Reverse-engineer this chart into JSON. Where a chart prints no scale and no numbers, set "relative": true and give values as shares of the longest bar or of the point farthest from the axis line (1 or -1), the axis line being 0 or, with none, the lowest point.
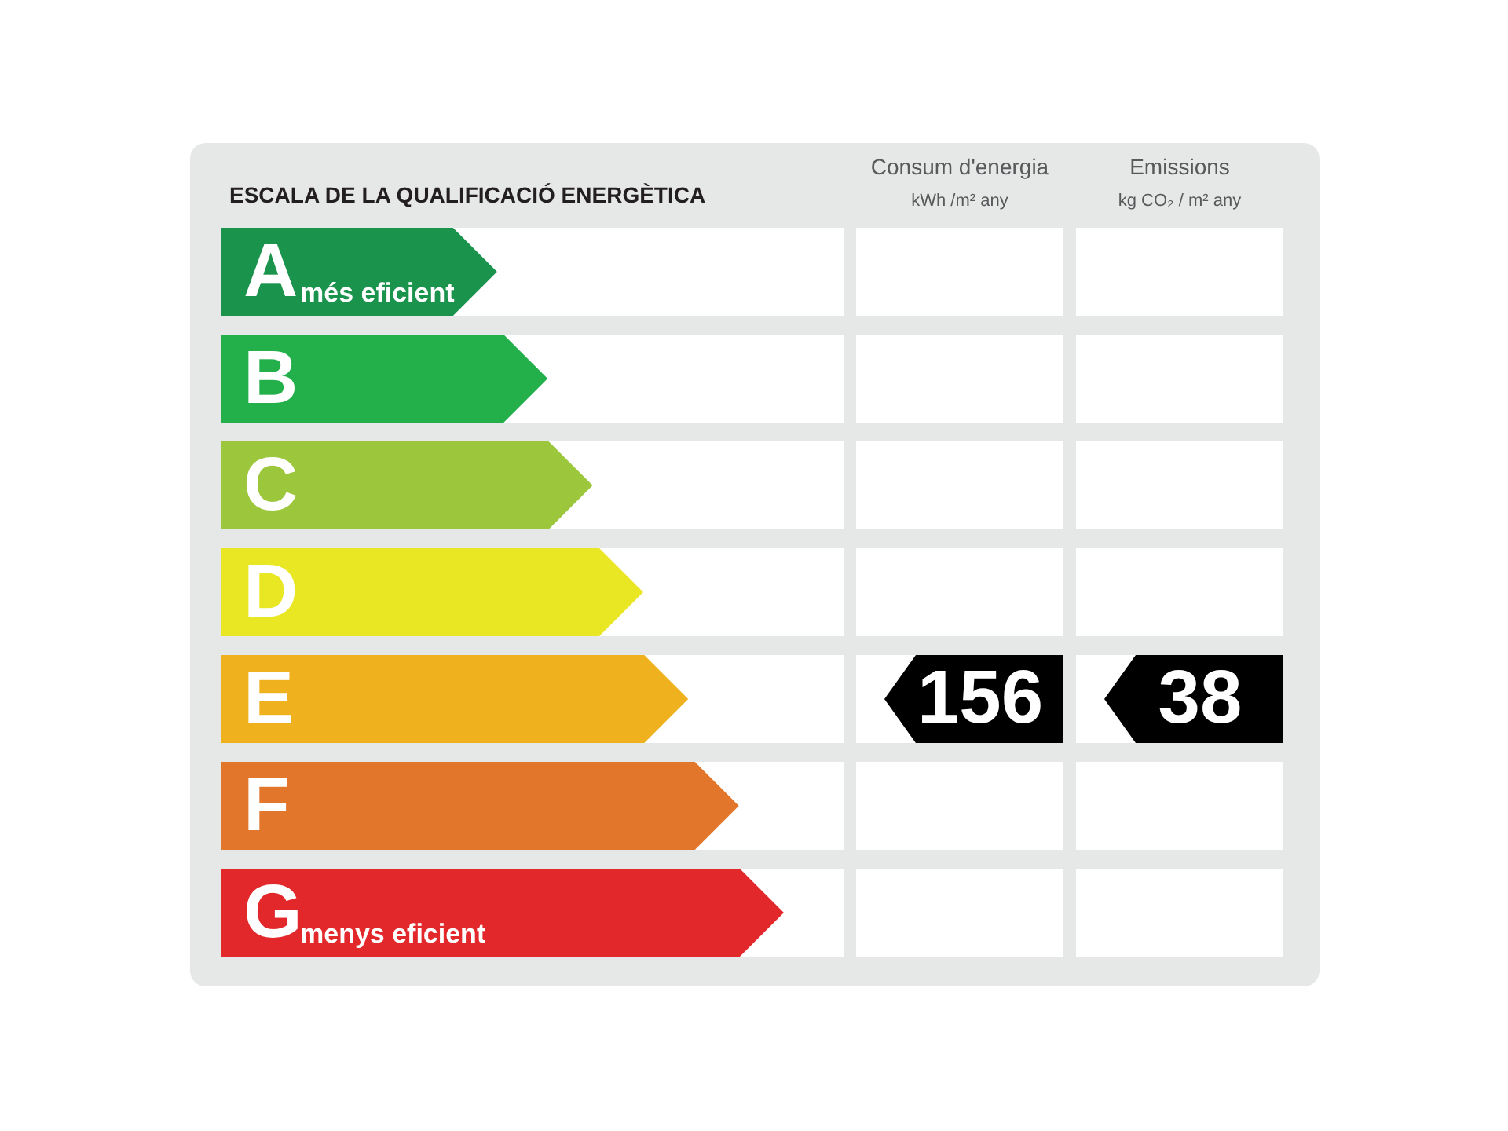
{
  "chart_data": {
    "type": "bar",
    "orientation": "horizontal",
    "relative": true,
    "grid": "y",
    "title": "ESCALA DE LA QUALIFICACIÓ ENERGÈTICA",
    "categories": [
      "A",
      "B",
      "C",
      "D",
      "E",
      "F",
      "G"
    ],
    "values": [
      0.49,
      0.58,
      0.66,
      0.75,
      0.83,
      0.92,
      1
    ],
    "colors": [
      "#1a934d",
      "#23b04b",
      "#9cc73c",
      "#e9e623",
      "#f0b11e",
      "#e2762b",
      "#e3282b"
    ],
    "annotations": [
      {
        "text": "més eficient",
        "y": "A"
      },
      {
        "text": "menys eficient",
        "y": "G"
      },
      "Consum d'energia\nkWh /m² any",
      "Emissions\nkg CO₂ / m² any",
      "156",
      "38"
    ]
  }
}
